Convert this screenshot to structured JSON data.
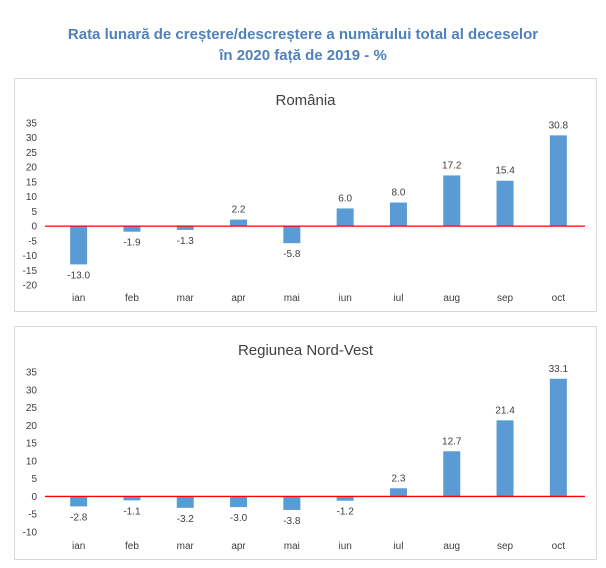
{
  "title_lines": [
    "Rata lunară de creștere/descreștere a numărului total al deceselor",
    "în 2020 față de 2019 - %"
  ],
  "colors": {
    "title": "#4f81bd",
    "bar": "#5b9bd5",
    "zero_line": "#ff0000",
    "border": "#d9d9d9",
    "text": "#404040"
  },
  "chart_data": [
    {
      "type": "bar",
      "title": "România",
      "xlabel": "",
      "ylabel": "",
      "categories": [
        "ian",
        "feb",
        "mar",
        "apr",
        "mai",
        "iun",
        "iul",
        "aug",
        "sep",
        "oct"
      ],
      "values": [
        -13.0,
        -1.9,
        -1.3,
        2.2,
        -5.8,
        6.0,
        8.0,
        17.2,
        15.4,
        30.8
      ],
      "data_labels": [
        "-13.0",
        "-1.9",
        "-1.3",
        "2.2",
        "-5.8",
        "6.0",
        "8.0",
        "17.2",
        "15.4",
        "30.8"
      ],
      "ylim": [
        -20,
        35
      ],
      "yticks": [
        35,
        30,
        25,
        20,
        15,
        10,
        5,
        0,
        -5,
        -10,
        -15,
        -20
      ],
      "grid": false,
      "legend": "none"
    },
    {
      "type": "bar",
      "title": "Regiunea Nord-Vest",
      "xlabel": "",
      "ylabel": "",
      "categories": [
        "ian",
        "feb",
        "mar",
        "apr",
        "mai",
        "iun",
        "iul",
        "aug",
        "sep",
        "oct"
      ],
      "values": [
        -2.8,
        -1.1,
        -3.2,
        -3.0,
        -3.8,
        -1.2,
        2.3,
        12.7,
        21.4,
        33.1
      ],
      "data_labels": [
        "-2.8",
        "-1.1",
        "-3.2",
        "-3.0",
        "-3.8",
        "-1.2",
        "2.3",
        "12.7",
        "21.4",
        "33.1"
      ],
      "ylim": [
        -10,
        35
      ],
      "yticks": [
        35,
        30,
        25,
        20,
        15,
        10,
        5,
        0,
        -5,
        -10
      ],
      "grid": false,
      "legend": "none"
    }
  ]
}
